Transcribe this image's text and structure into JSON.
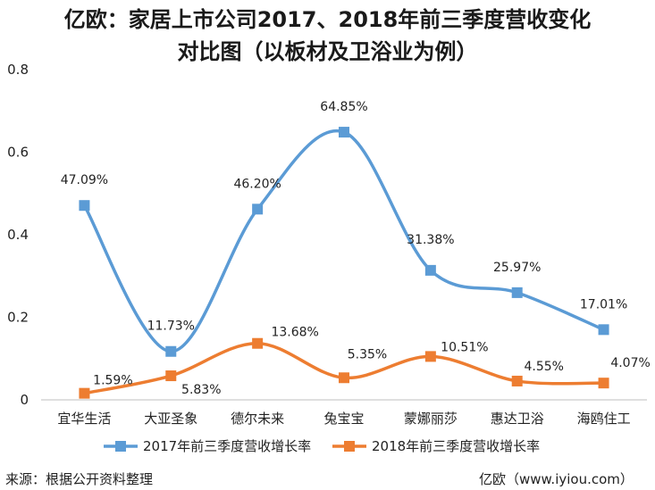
{
  "title_line1": "亿欧：家居上市公司2017、2018年前三季度营收变化",
  "title_line2": "对比图（以板材及卫浴业为例）",
  "source_note": "来源：根据公开资料整理",
  "brand_note": "亿欧（www.iyiou.com）",
  "colors": {
    "series1": "#5b9bd5",
    "series2": "#ed7d31",
    "axis": "#bfbfbf"
  },
  "chart_data": {
    "type": "line",
    "categories": [
      "宜华生活",
      "大亚圣象",
      "德尔未来",
      "兔宝宝",
      "蒙娜丽莎",
      "惠达卫浴",
      "海鸥住工"
    ],
    "ylim": [
      0,
      0.8
    ],
    "yticks": [
      "0",
      "0.2",
      "0.4",
      "0.6",
      "0.8"
    ],
    "legend_position": "bottom",
    "series": [
      {
        "name": "2017年前三季度营收增长率",
        "values": [
          0.4709,
          0.1173,
          0.462,
          0.6485,
          0.3138,
          0.2597,
          0.1701
        ],
        "labels": [
          "47.09%",
          "11.73%",
          "46.20%",
          "64.85%",
          "31.38%",
          "25.97%",
          "17.01%"
        ]
      },
      {
        "name": "2018年前三季度营收增长率",
        "values": [
          0.0159,
          0.0583,
          0.1368,
          0.0535,
          0.1051,
          0.0455,
          0.0407
        ],
        "labels": [
          "1.59%",
          "5.83%",
          "13.68%",
          "5.35%",
          "10.51%",
          "4.55%",
          "4.07%"
        ]
      }
    ]
  }
}
